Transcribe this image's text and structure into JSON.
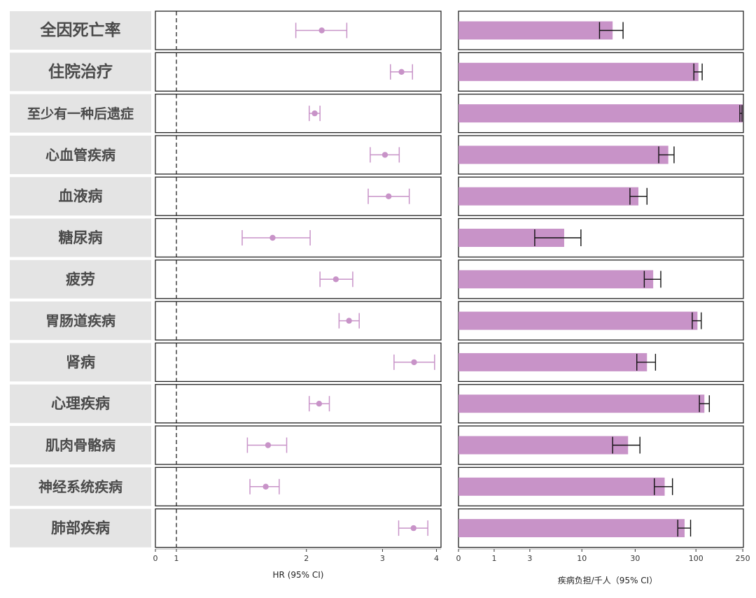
{
  "colors": {
    "accent": "#c893c8",
    "label_bg": "#e4e4e4",
    "panel_border": "#222222",
    "error_bar": "#111111"
  },
  "chart_data": [
    {
      "type": "scatter",
      "subtype": "forest-plot",
      "xlabel": "HR (95% CI)",
      "x_scale": "log",
      "x_ticks": [
        "0",
        "1",
        "2",
        "3",
        "4"
      ],
      "reference_line": 1,
      "categories": [
        "全因死亡率",
        "住院治疗",
        "至少有一种后遗症",
        "心血管疾病",
        "血液病",
        "糖尿病",
        "疲劳",
        "胃肠道疾病",
        "肾病",
        "心理疾病",
        "肌肉骨骼病",
        "神经系统疾病",
        "肺部疾病"
      ],
      "values": [
        2.17,
        3.32,
        2.09,
        3.04,
        3.1,
        1.67,
        2.34,
        2.51,
        3.55,
        2.14,
        1.63,
        1.61,
        3.54
      ],
      "ci_lower": [
        1.89,
        3.13,
        2.03,
        2.81,
        2.78,
        1.42,
        2.15,
        2.38,
        3.19,
        2.03,
        1.46,
        1.48,
        3.27
      ],
      "ci_upper": [
        2.48,
        3.52,
        2.15,
        3.28,
        3.46,
        2.04,
        2.56,
        2.65,
        3.96,
        2.26,
        1.8,
        1.73,
        3.82
      ],
      "grid": false
    },
    {
      "type": "bar",
      "orientation": "horizontal",
      "xlabel": "疾病负担/千人（95% CI）",
      "x_scale": "log1p",
      "x_ticks": [
        "0",
        "1",
        "3",
        "10",
        "30",
        "100",
        "250"
      ],
      "categories": [
        "全因死亡率",
        "住院治疗",
        "至少有一种后遗症",
        "心血管疾病",
        "血液病",
        "糖尿病",
        "疲劳",
        "胃肠道疾病",
        "肾病",
        "心理疾病",
        "肌肉骨骼病",
        "神经系统疾病",
        "肺部疾病"
      ],
      "values": [
        19.0,
        105.0,
        250.0,
        58.0,
        32.0,
        6.8,
        43.0,
        103.0,
        38.0,
        118.0,
        26.0,
        54.0,
        80.0
      ],
      "ci_lower": [
        14.5,
        96.0,
        236.0,
        48.0,
        27.0,
        3.4,
        36.0,
        93.0,
        31.0,
        107.0,
        19.0,
        44.0,
        70.0
      ],
      "ci_upper": [
        23.5,
        113.0,
        258.0,
        65.0,
        38.0,
        9.8,
        50.0,
        111.0,
        45.0,
        130.0,
        33.0,
        63.0,
        90.0
      ],
      "grid": false
    }
  ]
}
